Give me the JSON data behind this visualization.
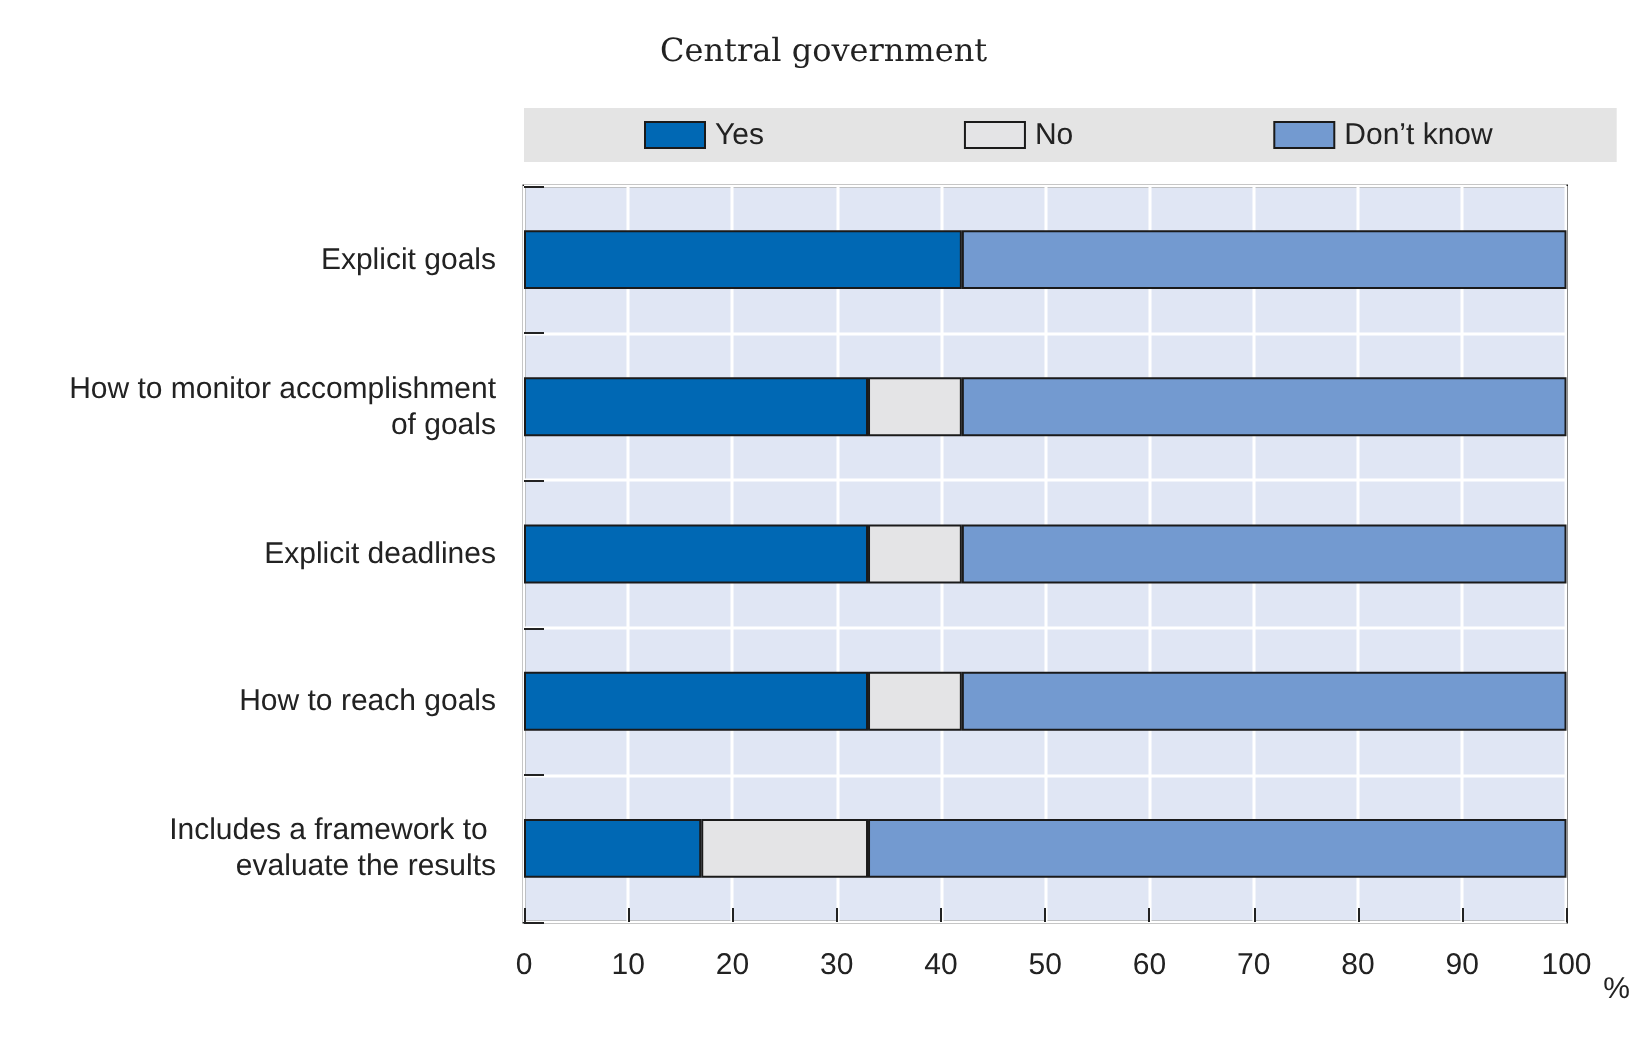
{
  "chart_data": {
    "type": "bar",
    "orientation": "horizontal",
    "stacked": true,
    "title": "Central government",
    "xlabel": "%",
    "categories": [
      "Explicit goals",
      "How to monitor accomplishment of goals",
      "Explicit deadlines",
      "How to reach goals",
      "Includes a framework to evaluate the results"
    ],
    "series": [
      {
        "name": "Yes",
        "color": "#0068b4",
        "values": [
          42,
          33,
          33,
          33,
          17
        ]
      },
      {
        "name": "No",
        "color": "#e4e4e6",
        "values": [
          null,
          9,
          9,
          9,
          16
        ]
      },
      {
        "name": "Don’t know",
        "color": "#739ad0",
        "values": [
          58,
          58,
          58,
          58,
          67
        ]
      }
    ],
    "xlim": [
      0,
      100
    ],
    "xticks": [
      0,
      10,
      20,
      30,
      40,
      50,
      60,
      70,
      80,
      90,
      100
    ],
    "grid": true,
    "legend": "top"
  }
}
